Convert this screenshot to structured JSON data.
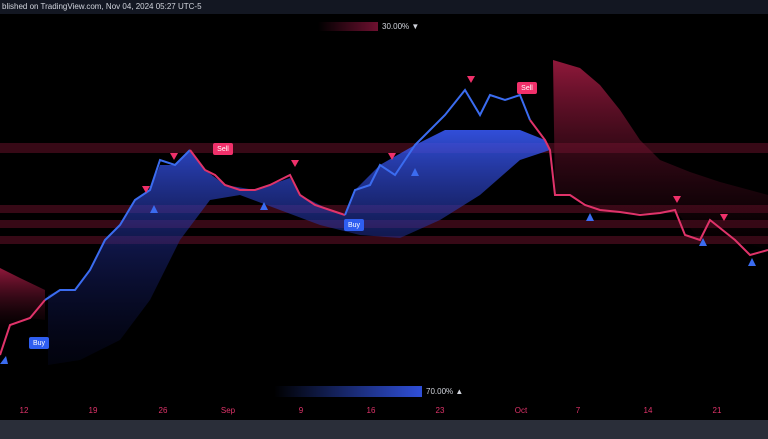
{
  "header": {
    "text": "blished on TradingView.com, Nov 04, 2024 05:27 UTC-5"
  },
  "gauges": {
    "top": "30.00% ▼",
    "bottom": "70.00% ▲"
  },
  "signals": {
    "sell_1": "Sell",
    "sell_2": "Sell",
    "buy_1": "Buy",
    "buy_2": "Buy"
  },
  "x_axis": {
    "labels": [
      "12",
      "19",
      "26",
      "Sep",
      "9",
      "16",
      "23",
      "Oct",
      "7",
      "14",
      "21"
    ]
  }
}
